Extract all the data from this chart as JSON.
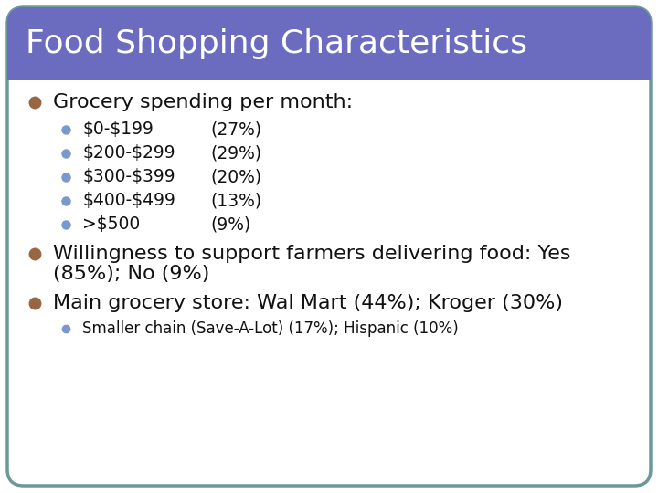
{
  "title": "Food Shopping Characteristics",
  "title_bg_color": "#6B6BBF",
  "title_text_color": "#FFFFFF",
  "slide_bg_color": "#FFFFFF",
  "border_color": "#6B9999",
  "bullet_color_l1": "#996644",
  "bullet_color_l2": "#7799CC",
  "text_color": "#111111",
  "separator_color": "#FFFFFF",
  "sub_items": [
    {
      "text": "\\$0-\\$199",
      "value": "(27%)"
    },
    {
      "text": "\\$200-\\$299",
      "value": "(29%)"
    },
    {
      "text": "\\$300-\\$399",
      "value": "(20%)"
    },
    {
      "text": "\\$400-\\$499",
      "value": "(13%)"
    },
    {
      "text": ">\\$500",
      "value": "(9%)"
    }
  ],
  "l1_fontsize": 16,
  "l2_fontsize": 13.5,
  "l3_fontsize": 12
}
